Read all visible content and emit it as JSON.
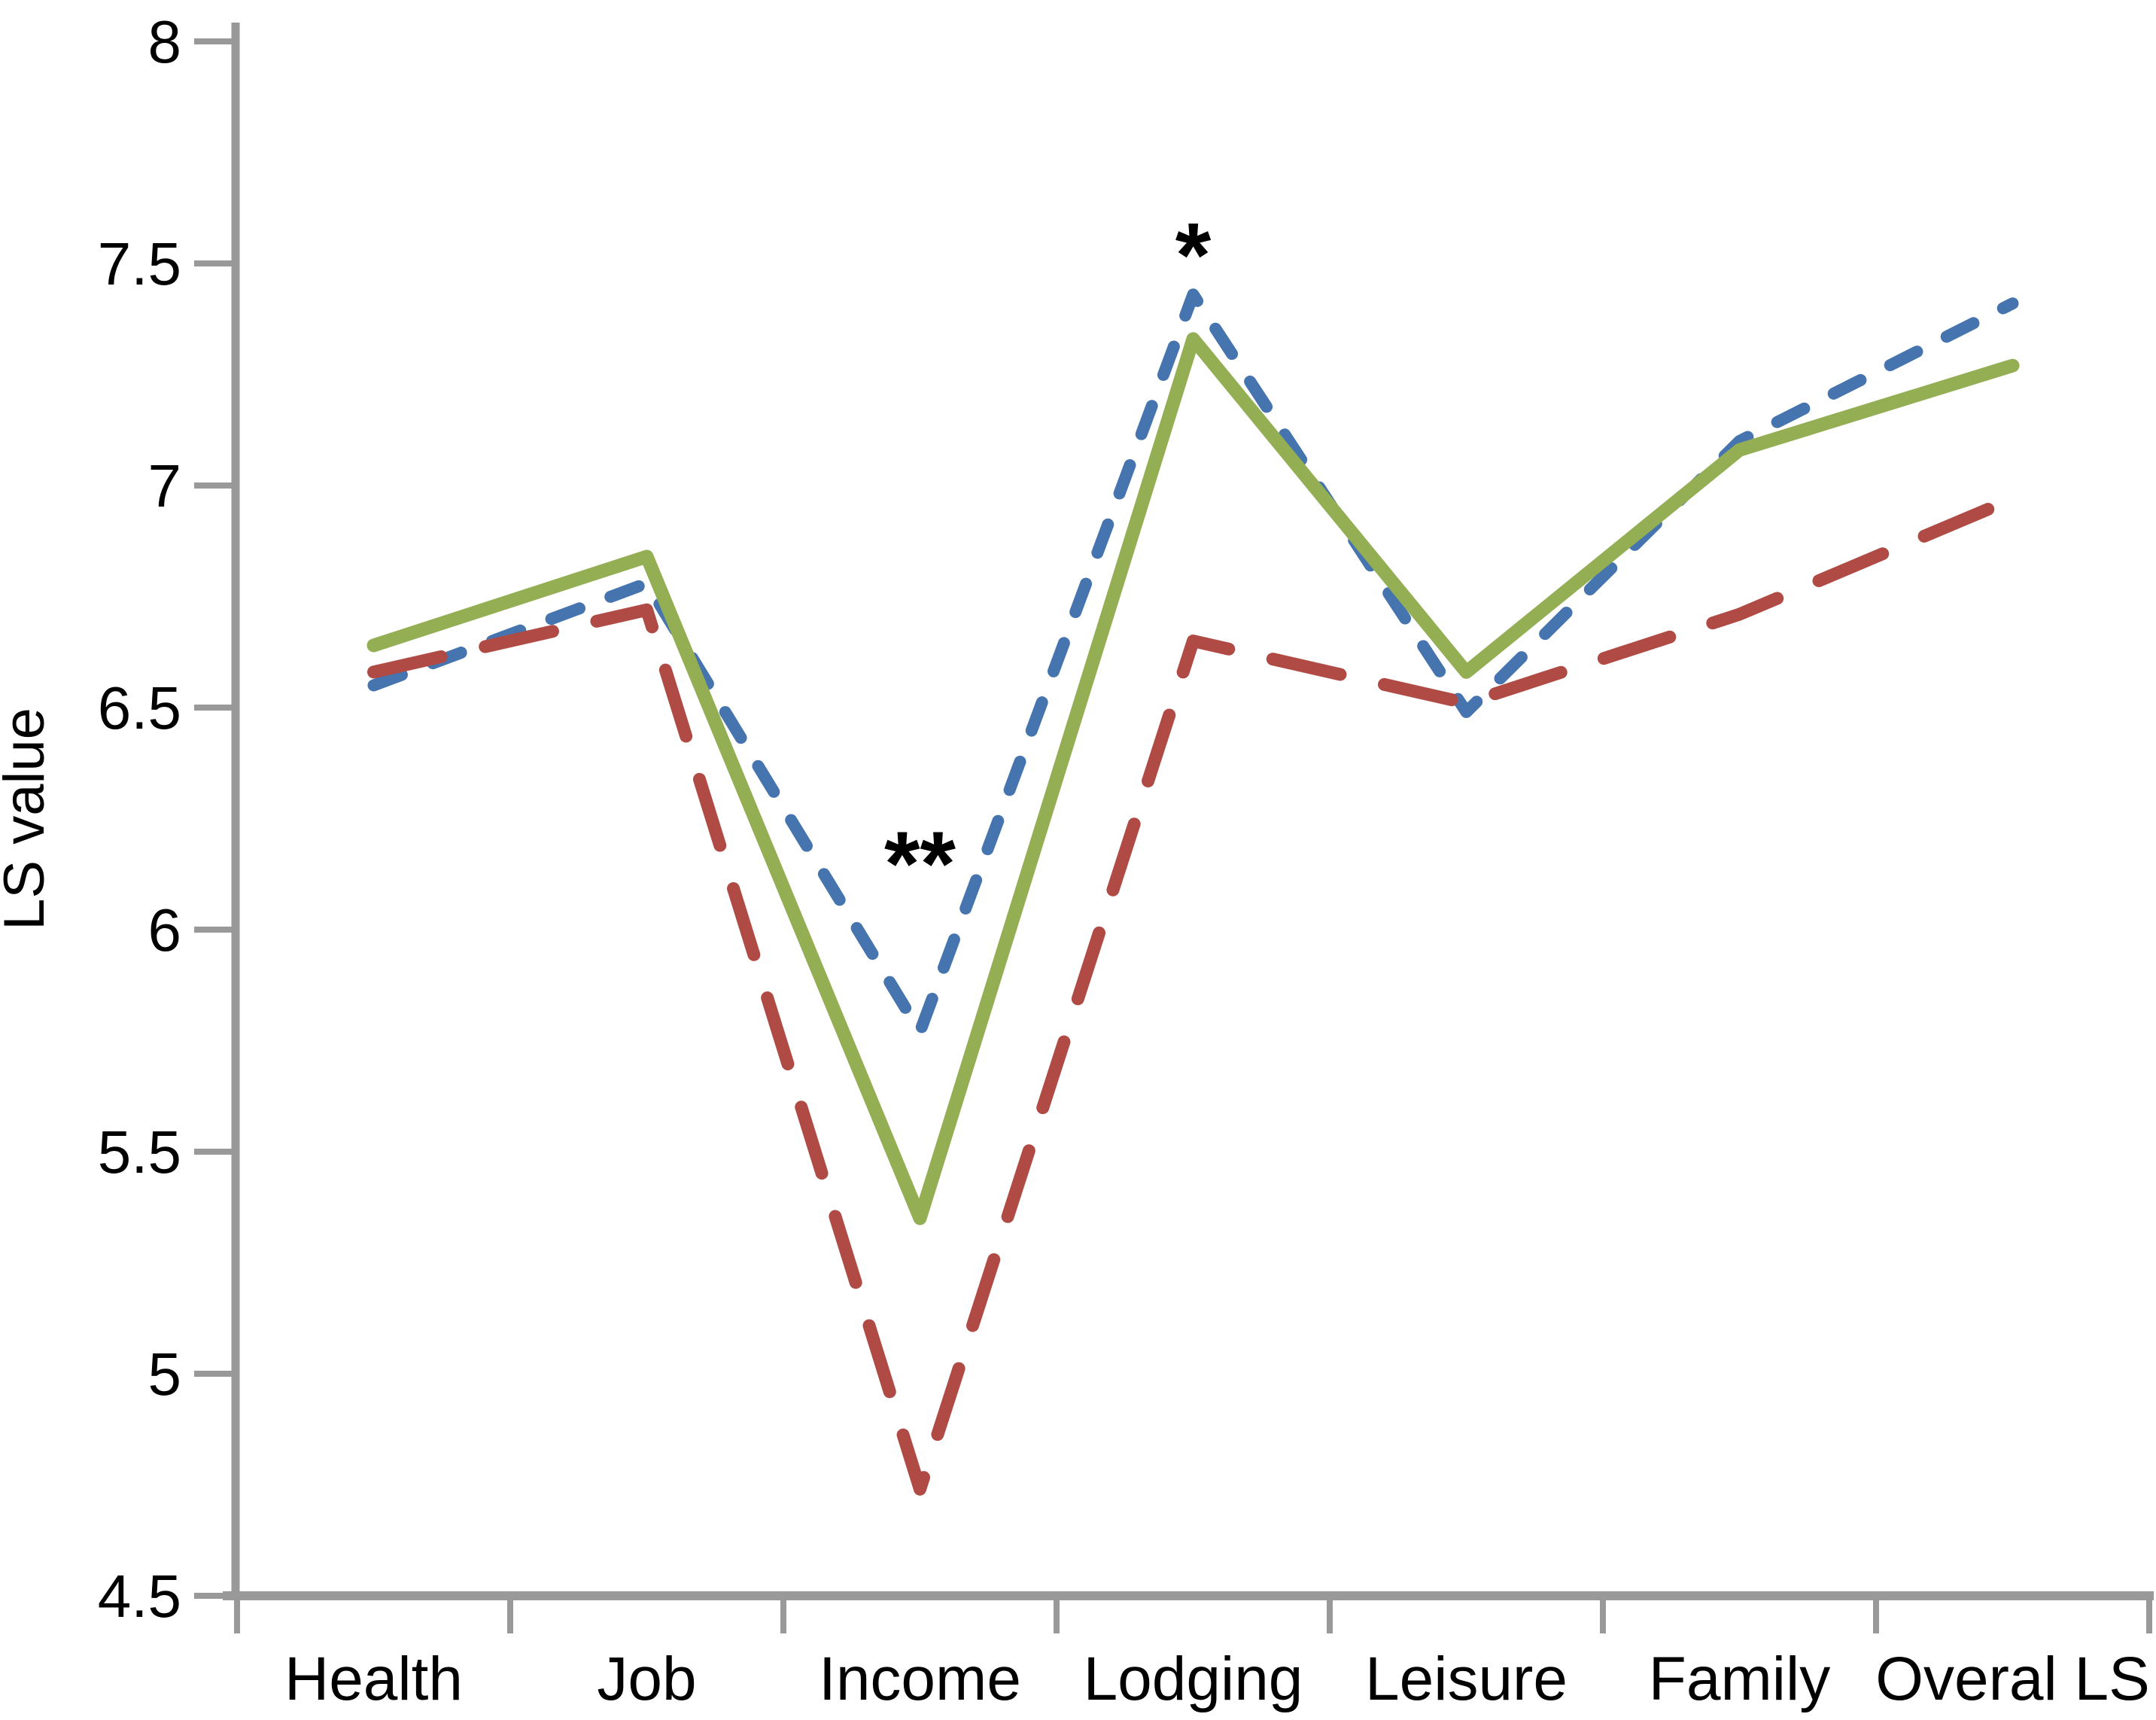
{
  "figure": {
    "background_color": "#ffffff",
    "axis_color": "#999999",
    "tick_color": "#999999",
    "text_color": "#000000"
  },
  "chart_data": {
    "type": "line",
    "title": "",
    "xlabel": "",
    "ylabel": "LS value",
    "ylim": [
      4.5,
      8
    ],
    "y_tick_step": 0.5,
    "y_tick_labels": [
      "8",
      "7.5",
      "7",
      "6.5",
      "6",
      "5.5",
      "5",
      "4.5"
    ],
    "y_tick_values": [
      8,
      7.5,
      7,
      6.5,
      6,
      5.5,
      5,
      4.5
    ],
    "grid": false,
    "legend": "none",
    "categories": [
      "Health",
      "Job",
      "Income",
      "Lodging",
      "Leisure",
      "Family",
      "Overal LS"
    ],
    "series": [
      {
        "name": "blue-short-dashed-line",
        "color": "#4674AE",
        "line_style": "short-dash",
        "values": [
          6.55,
          6.78,
          5.77,
          7.43,
          6.49,
          7.1,
          7.41
        ]
      },
      {
        "name": "red-long-dashed-line",
        "color": "#B04A44",
        "line_style": "long-dash",
        "values": [
          6.58,
          6.72,
          4.74,
          6.65,
          6.51,
          6.71,
          6.97
        ]
      },
      {
        "name": "green-solid-line",
        "color": "#94AE53",
        "line_style": "solid",
        "values": [
          6.64,
          6.84,
          5.35,
          7.33,
          6.58,
          7.08,
          7.27
        ]
      }
    ],
    "annotations": [
      {
        "text": "**",
        "category": "Income",
        "value": 6.2
      },
      {
        "text": "*",
        "category": "Lodging",
        "value": 7.57
      }
    ]
  }
}
